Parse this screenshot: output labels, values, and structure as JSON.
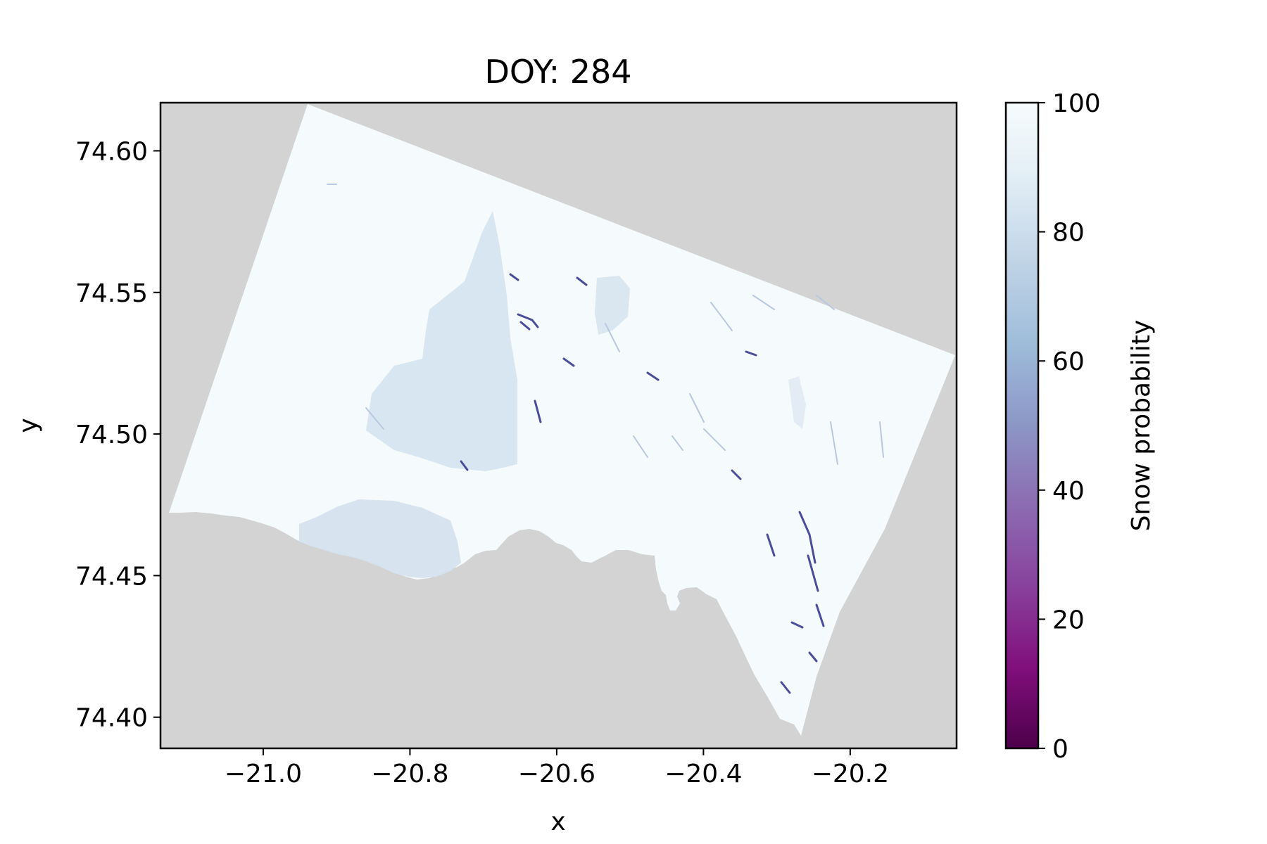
{
  "chart_data": {
    "type": "heatmap",
    "title": "DOY: 284",
    "xlabel": "x",
    "ylabel": "y",
    "xlim": [
      -21.14,
      -20.055
    ],
    "ylim": [
      74.389,
      74.617
    ],
    "xticks": [
      -21.0,
      -20.8,
      -20.6,
      -20.4,
      -20.2
    ],
    "xtick_labels": [
      "−21.0",
      "−20.8",
      "−20.6",
      "−20.4",
      "−20.2"
    ],
    "yticks": [
      74.4,
      74.45,
      74.5,
      74.55,
      74.6
    ],
    "ytick_labels": [
      "74.40",
      "74.45",
      "74.50",
      "74.55",
      "74.60"
    ],
    "colorbar": {
      "label": "Snow probability",
      "colormap": "BuPu_r",
      "range": [
        0,
        100
      ],
      "ticks": [
        0,
        20,
        40,
        60,
        80,
        100
      ],
      "tick_labels": [
        "0",
        "20",
        "40",
        "60",
        "80",
        "100"
      ],
      "stops": [
        "#4d004b",
        "#810f7c",
        "#88419d",
        "#8c6bb1",
        "#8c96c6",
        "#9ebcda",
        "#bfd3e6",
        "#e0ecf4",
        "#f7fcfd"
      ]
    },
    "nodata_color": "#d3d3d3",
    "dominant_value": 98,
    "colors": {
      "background_snow": "#f5fbfc",
      "medium_patch": "#d5e3ef",
      "dark_streak": "#4a4d9a"
    }
  }
}
